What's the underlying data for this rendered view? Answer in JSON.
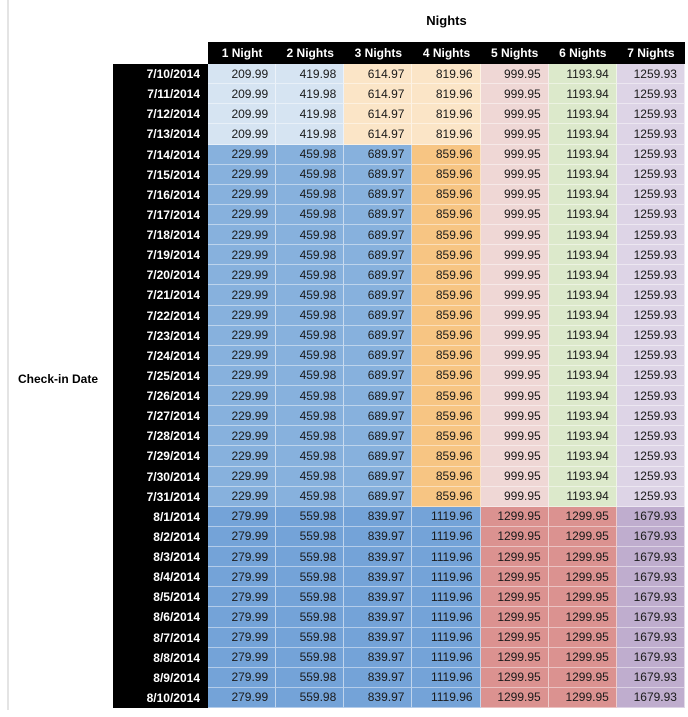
{
  "title": "Nights",
  "row_axis_label": "Check-in Date",
  "colors": {
    "light_blue": "#D6E4F2",
    "light_orange": "#FBE5C7",
    "med_blue": "#87B1DD",
    "med_orange": "#F7C583",
    "dark_blue": "#74A3D8",
    "pink": "#EFD7D5",
    "green": "#DCE9CB",
    "purple": "#DDD4E6",
    "med_red": "#DB9290",
    "med_purple": "#BFADCE",
    "header_bg": "#000000",
    "header_text": "#FFFFFF",
    "data_text": "#1A1A1A"
  },
  "band_cell_colors": {
    "early_july": [
      "light_blue",
      "light_blue",
      "light_orange",
      "light_orange",
      "pink",
      "green",
      "purple"
    ],
    "mid_july": [
      "med_blue",
      "med_blue",
      "med_blue",
      "med_orange",
      "pink",
      "green",
      "purple"
    ],
    "august": [
      "dark_blue",
      "dark_blue",
      "dark_blue",
      "dark_blue",
      "med_red",
      "med_red",
      "med_purple"
    ]
  },
  "chart_data": {
    "type": "table",
    "title": "Nights",
    "row_axis_label": "Check-in Date",
    "columns": [
      "1 Night",
      "2 Nights",
      "3 Nights",
      "4 Nights",
      "5 Nights",
      "6 Nights",
      "7 Nights"
    ],
    "rows": [
      {
        "date": "7/10/2014",
        "band": "early_july",
        "values": [
          "209.99",
          "419.98",
          "614.97",
          "819.96",
          "999.95",
          "1193.94",
          "1259.93"
        ]
      },
      {
        "date": "7/11/2014",
        "band": "early_july",
        "values": [
          "209.99",
          "419.98",
          "614.97",
          "819.96",
          "999.95",
          "1193.94",
          "1259.93"
        ]
      },
      {
        "date": "7/12/2014",
        "band": "early_july",
        "values": [
          "209.99",
          "419.98",
          "614.97",
          "819.96",
          "999.95",
          "1193.94",
          "1259.93"
        ]
      },
      {
        "date": "7/13/2014",
        "band": "early_july",
        "values": [
          "209.99",
          "419.98",
          "614.97",
          "819.96",
          "999.95",
          "1193.94",
          "1259.93"
        ]
      },
      {
        "date": "7/14/2014",
        "band": "mid_july",
        "values": [
          "229.99",
          "459.98",
          "689.97",
          "859.96",
          "999.95",
          "1193.94",
          "1259.93"
        ]
      },
      {
        "date": "7/15/2014",
        "band": "mid_july",
        "values": [
          "229.99",
          "459.98",
          "689.97",
          "859.96",
          "999.95",
          "1193.94",
          "1259.93"
        ]
      },
      {
        "date": "7/16/2014",
        "band": "mid_july",
        "values": [
          "229.99",
          "459.98",
          "689.97",
          "859.96",
          "999.95",
          "1193.94",
          "1259.93"
        ]
      },
      {
        "date": "7/17/2014",
        "band": "mid_july",
        "values": [
          "229.99",
          "459.98",
          "689.97",
          "859.96",
          "999.95",
          "1193.94",
          "1259.93"
        ]
      },
      {
        "date": "7/18/2014",
        "band": "mid_july",
        "values": [
          "229.99",
          "459.98",
          "689.97",
          "859.96",
          "999.95",
          "1193.94",
          "1259.93"
        ]
      },
      {
        "date": "7/19/2014",
        "band": "mid_july",
        "values": [
          "229.99",
          "459.98",
          "689.97",
          "859.96",
          "999.95",
          "1193.94",
          "1259.93"
        ]
      },
      {
        "date": "7/20/2014",
        "band": "mid_july",
        "values": [
          "229.99",
          "459.98",
          "689.97",
          "859.96",
          "999.95",
          "1193.94",
          "1259.93"
        ]
      },
      {
        "date": "7/21/2014",
        "band": "mid_july",
        "values": [
          "229.99",
          "459.98",
          "689.97",
          "859.96",
          "999.95",
          "1193.94",
          "1259.93"
        ]
      },
      {
        "date": "7/22/2014",
        "band": "mid_july",
        "values": [
          "229.99",
          "459.98",
          "689.97",
          "859.96",
          "999.95",
          "1193.94",
          "1259.93"
        ]
      },
      {
        "date": "7/23/2014",
        "band": "mid_july",
        "values": [
          "229.99",
          "459.98",
          "689.97",
          "859.96",
          "999.95",
          "1193.94",
          "1259.93"
        ]
      },
      {
        "date": "7/24/2014",
        "band": "mid_july",
        "values": [
          "229.99",
          "459.98",
          "689.97",
          "859.96",
          "999.95",
          "1193.94",
          "1259.93"
        ]
      },
      {
        "date": "7/25/2014",
        "band": "mid_july",
        "values": [
          "229.99",
          "459.98",
          "689.97",
          "859.96",
          "999.95",
          "1193.94",
          "1259.93"
        ]
      },
      {
        "date": "7/26/2014",
        "band": "mid_july",
        "values": [
          "229.99",
          "459.98",
          "689.97",
          "859.96",
          "999.95",
          "1193.94",
          "1259.93"
        ]
      },
      {
        "date": "7/27/2014",
        "band": "mid_july",
        "values": [
          "229.99",
          "459.98",
          "689.97",
          "859.96",
          "999.95",
          "1193.94",
          "1259.93"
        ]
      },
      {
        "date": "7/28/2014",
        "band": "mid_july",
        "values": [
          "229.99",
          "459.98",
          "689.97",
          "859.96",
          "999.95",
          "1193.94",
          "1259.93"
        ]
      },
      {
        "date": "7/29/2014",
        "band": "mid_july",
        "values": [
          "229.99",
          "459.98",
          "689.97",
          "859.96",
          "999.95",
          "1193.94",
          "1259.93"
        ]
      },
      {
        "date": "7/30/2014",
        "band": "mid_july",
        "values": [
          "229.99",
          "459.98",
          "689.97",
          "859.96",
          "999.95",
          "1193.94",
          "1259.93"
        ]
      },
      {
        "date": "7/31/2014",
        "band": "mid_july",
        "values": [
          "229.99",
          "459.98",
          "689.97",
          "859.96",
          "999.95",
          "1193.94",
          "1259.93"
        ]
      },
      {
        "date": "8/1/2014",
        "band": "august",
        "values": [
          "279.99",
          "559.98",
          "839.97",
          "1119.96",
          "1299.95",
          "1299.95",
          "1679.93"
        ]
      },
      {
        "date": "8/2/2014",
        "band": "august",
        "values": [
          "279.99",
          "559.98",
          "839.97",
          "1119.96",
          "1299.95",
          "1299.95",
          "1679.93"
        ]
      },
      {
        "date": "8/3/2014",
        "band": "august",
        "values": [
          "279.99",
          "559.98",
          "839.97",
          "1119.96",
          "1299.95",
          "1299.95",
          "1679.93"
        ]
      },
      {
        "date": "8/4/2014",
        "band": "august",
        "values": [
          "279.99",
          "559.98",
          "839.97",
          "1119.96",
          "1299.95",
          "1299.95",
          "1679.93"
        ]
      },
      {
        "date": "8/5/2014",
        "band": "august",
        "values": [
          "279.99",
          "559.98",
          "839.97",
          "1119.96",
          "1299.95",
          "1299.95",
          "1679.93"
        ]
      },
      {
        "date": "8/6/2014",
        "band": "august",
        "values": [
          "279.99",
          "559.98",
          "839.97",
          "1119.96",
          "1299.95",
          "1299.95",
          "1679.93"
        ]
      },
      {
        "date": "8/7/2014",
        "band": "august",
        "values": [
          "279.99",
          "559.98",
          "839.97",
          "1119.96",
          "1299.95",
          "1299.95",
          "1679.93"
        ]
      },
      {
        "date": "8/8/2014",
        "band": "august",
        "values": [
          "279.99",
          "559.98",
          "839.97",
          "1119.96",
          "1299.95",
          "1299.95",
          "1679.93"
        ]
      },
      {
        "date": "8/9/2014",
        "band": "august",
        "values": [
          "279.99",
          "559.98",
          "839.97",
          "1119.96",
          "1299.95",
          "1299.95",
          "1679.93"
        ]
      },
      {
        "date": "8/10/2014",
        "band": "august",
        "values": [
          "279.99",
          "559.98",
          "839.97",
          "1119.96",
          "1299.95",
          "1299.95",
          "1679.93"
        ]
      }
    ]
  }
}
